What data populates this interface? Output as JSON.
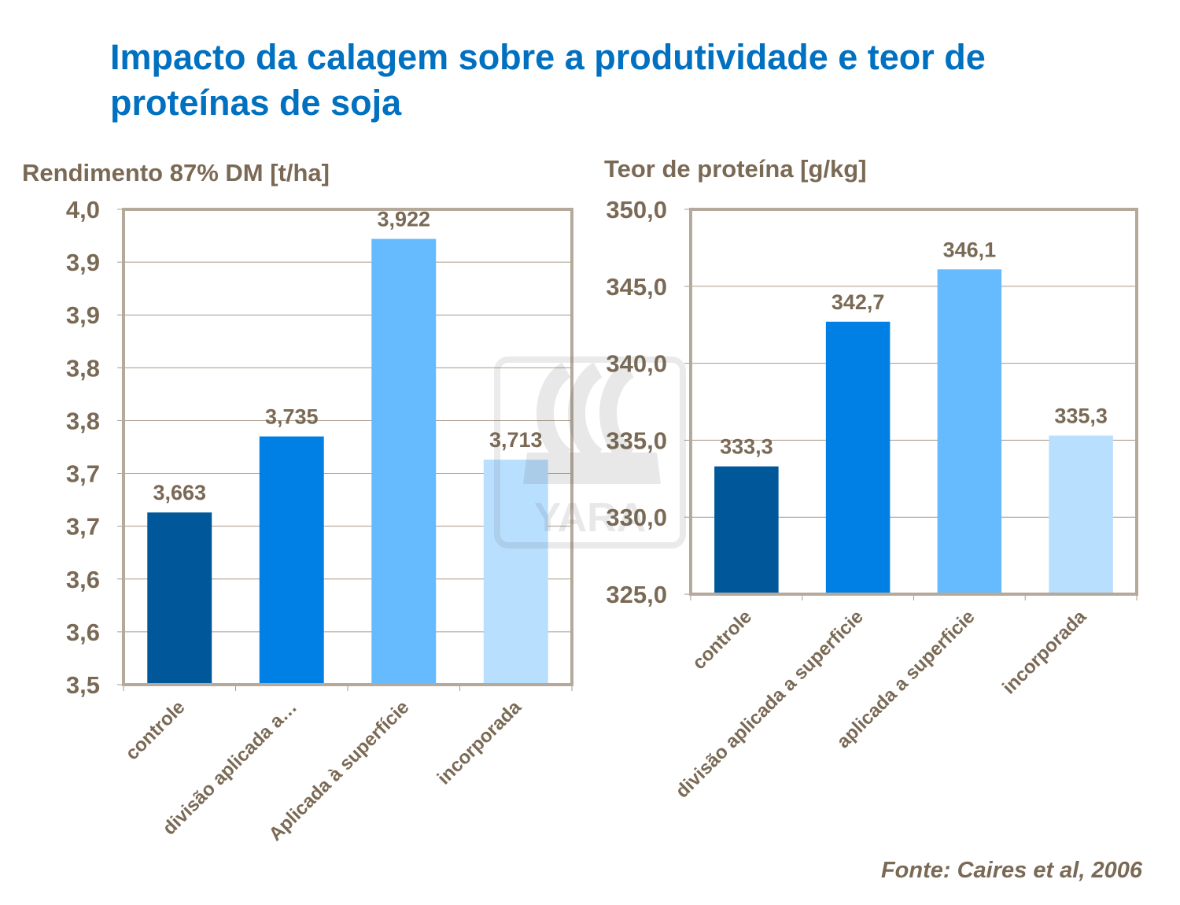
{
  "title": "Impacto da calagem sobre a produtividade e teor de proteínas de soja",
  "source": "Fonte: Caires et al, 2006",
  "watermark": {
    "text": "YARA",
    "icon": "yara-viking-ship-logo"
  },
  "colors": [
    "#00579A",
    "#0080E4",
    "#66BBFF",
    "#B9DFFF"
  ],
  "chart_data": [
    {
      "type": "bar",
      "title": "Rendimento 87% DM [t/ha]",
      "ylabel": "Rendimento 87% DM [t/ha]",
      "categories": [
        "controle",
        "divisão aplicada a…",
        "Aplicada à superfície",
        "incorporada"
      ],
      "values": [
        3.663,
        3.735,
        3.922,
        3.713
      ],
      "data_labels": [
        "3,663",
        "3,735",
        "3,922",
        "3,713"
      ],
      "ylim": [
        3.5,
        3.95
      ],
      "y_ticks": [
        3.5,
        3.55,
        3.6,
        3.65,
        3.7,
        3.75,
        3.8,
        3.85,
        3.9,
        3.95
      ],
      "y_tick_labels": [
        "3,5",
        "3,6",
        "3,6",
        "3,7",
        "3,7",
        "3,8",
        "3,8",
        "3,9",
        "3,9",
        "4,0"
      ],
      "grid": true
    },
    {
      "type": "bar",
      "title": "Teor de proteína [g/kg]",
      "ylabel": "Teor de proteína [g/kg]",
      "categories": [
        "controle",
        "divisão aplicada a superficie",
        "aplicada a superficie",
        "incorporada"
      ],
      "values": [
        333.3,
        342.7,
        346.1,
        335.3
      ],
      "data_labels": [
        "333,3",
        "342,7",
        "346,1",
        "335,3"
      ],
      "ylim": [
        325,
        350
      ],
      "y_ticks": [
        325,
        330,
        335,
        340,
        345,
        350
      ],
      "y_tick_labels": [
        "325,0",
        "330,0",
        "335,0",
        "340,0",
        "345,0",
        "350,0"
      ],
      "grid": true
    }
  ]
}
